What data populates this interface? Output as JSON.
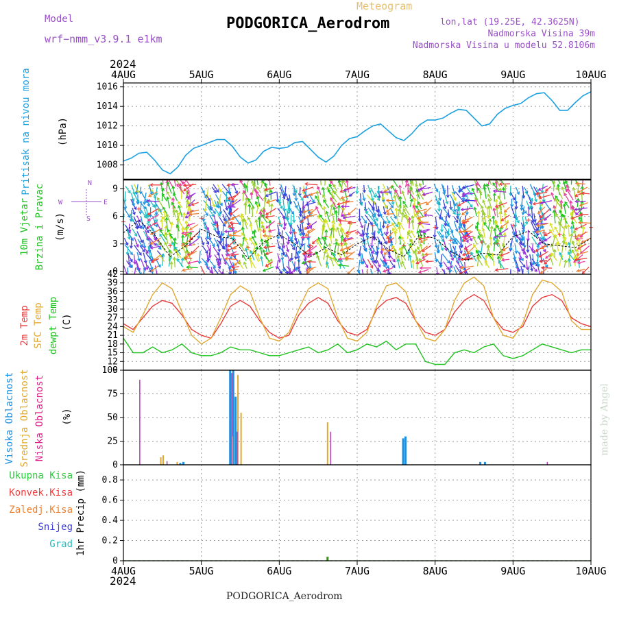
{
  "header": {
    "model_label": "Model",
    "model_name": "wrf−nmm_v3.9.1  e1km",
    "meteogram_label": "Meteogram",
    "station_title": "PODGORICA_Aerodrom",
    "lonlat": "lon,lat (19.25E, 42.3625N)",
    "altitude": "Nadmorska Visina 39m",
    "model_altitude": "Nadmorska Visina u modelu 52.8106m",
    "bottom_title": "PODGORICA_Aerodrom",
    "watermark": "made by Angel"
  },
  "colors": {
    "pressure": "#1aa0e0",
    "temp2m": "#e83a3a",
    "sfc": "#e0a830",
    "dew": "#1ec21e",
    "high_cloud": "#1e90e0",
    "mid_cloud": "#e0a830",
    "low_cloud": "#b040b0",
    "model_purple": "#9a50c8",
    "precip_total": "#2ecc40",
    "precip_conv": "#f03c3c",
    "precip_snow_freeze": "#f08030",
    "precip_snow": "#3c3cd8",
    "precip_hail": "#20c0c0"
  },
  "time_axis": {
    "year": "2024",
    "day_labels": [
      "4AUG",
      "5AUG",
      "6AUG",
      "7AUG",
      "8AUG",
      "9AUG",
      "10AUG"
    ]
  },
  "wind_compass": {
    "north": "N",
    "west": "W",
    "east": "E",
    "south": "S"
  },
  "chart_data": [
    {
      "type": "line",
      "id": "pressure",
      "ylabel": "Pritisak na nivou mora",
      "unit_label": "(hPa)",
      "yticks": [
        1008,
        1010,
        1012,
        1014,
        1016
      ],
      "ylim": [
        1006.5,
        1016.4
      ],
      "grid": true,
      "series": [
        {
          "x": [
            0,
            0.1,
            0.2,
            0.3,
            0.4,
            0.5,
            0.6,
            0.7,
            0.8,
            0.9,
            1,
            1.1,
            1.2,
            1.3,
            1.4,
            1.5,
            1.6,
            1.7,
            1.8,
            1.9,
            2,
            2.1,
            2.2,
            2.3,
            2.4,
            2.5,
            2.6,
            2.7,
            2.8,
            2.9,
            3,
            3.1,
            3.2,
            3.3,
            3.4,
            3.5,
            3.6,
            3.7,
            3.8,
            3.9,
            4,
            4.1,
            4.2,
            4.3,
            4.4,
            4.5,
            4.6,
            4.7,
            4.8,
            4.9,
            5,
            5.1,
            5.2,
            5.3,
            5.4,
            5.5,
            5.6,
            5.7,
            5.8,
            5.9,
            6
          ],
          "values": [
            1008.4,
            1008.7,
            1009.2,
            1009.3,
            1008.5,
            1007.5,
            1007.1,
            1007.8,
            1009.0,
            1009.7,
            1010.0,
            1010.3,
            1010.6,
            1010.6,
            1009.9,
            1008.8,
            1008.2,
            1008.5,
            1009.4,
            1009.8,
            1009.7,
            1009.8,
            1010.3,
            1010.4,
            1009.6,
            1008.8,
            1008.3,
            1008.9,
            1010.0,
            1010.7,
            1010.9,
            1011.5,
            1012.0,
            1012.2,
            1011.5,
            1010.8,
            1010.5,
            1011.2,
            1012.1,
            1012.6,
            1012.6,
            1012.8,
            1013.3,
            1013.7,
            1013.6,
            1012.8,
            1012.0,
            1012.2,
            1013.2,
            1013.8,
            1014.1,
            1014.3,
            1014.9,
            1015.3,
            1015.4,
            1014.6,
            1013.6,
            1013.6,
            1014.4,
            1015.1,
            1015.5
          ]
        }
      ]
    },
    {
      "type": "scatter",
      "id": "wind",
      "ylabel": "10m Vjetar Brzina i Pravac",
      "ylabel_lines": [
        "10m Vjetar",
        "Brzina i Pravac"
      ],
      "unit_label": "(m/s)",
      "yticks": [
        0,
        3,
        6,
        9
      ],
      "ylim": [
        -0.3,
        10
      ],
      "grid": true,
      "speed_x": [
        0,
        0.2,
        0.4,
        0.6,
        0.8,
        1,
        1.2,
        1.4,
        1.6,
        1.8,
        2,
        2.2,
        2.4,
        2.6,
        2.8,
        3,
        3.2,
        3.4,
        3.6,
        3.8,
        4,
        4.2,
        4.4,
        4.6,
        4.8,
        5,
        5.2,
        5.4,
        5.6,
        5.8,
        6
      ],
      "speed_values": [
        4.2,
        5.6,
        4.0,
        1.6,
        2.8,
        4.6,
        3.8,
        3.6,
        1.4,
        3.2,
        4.0,
        3.0,
        1.6,
        2.6,
        1.8,
        3.0,
        3.8,
        2.4,
        1.6,
        4.0,
        3.6,
        2.2,
        1.2,
        2.0,
        1.8,
        3.8,
        4.4,
        3.0,
        2.8,
        2.6,
        3.6
      ]
    },
    {
      "type": "line",
      "id": "temperature",
      "ylabel_lines": [
        "2m Temp",
        "SFC Temp",
        "dewpt Temp"
      ],
      "unit_label": "(C)",
      "yticks": [
        9,
        12,
        15,
        18,
        21,
        24,
        27,
        30,
        33,
        36,
        39,
        42
      ],
      "ylim": [
        9,
        42
      ],
      "grid": true,
      "x": [
        0,
        0.125,
        0.25,
        0.375,
        0.5,
        0.625,
        0.75,
        0.875,
        1,
        1.125,
        1.25,
        1.375,
        1.5,
        1.625,
        1.75,
        1.875,
        2,
        2.125,
        2.25,
        2.375,
        2.5,
        2.625,
        2.75,
        2.875,
        3,
        3.125,
        3.25,
        3.375,
        3.5,
        3.625,
        3.75,
        3.875,
        4,
        4.125,
        4.25,
        4.375,
        4.5,
        4.625,
        4.75,
        4.875,
        5,
        5.125,
        5.25,
        5.375,
        5.5,
        5.625,
        5.75,
        5.875,
        6
      ],
      "series": [
        {
          "name": "2m Temp",
          "values": [
            25,
            23,
            27,
            31,
            33,
            32,
            28,
            23,
            21,
            20,
            25,
            31,
            33,
            31,
            26,
            22,
            20,
            21,
            28,
            32,
            34,
            32,
            26,
            22,
            21,
            23,
            30,
            33,
            34,
            32,
            26,
            22,
            21,
            23,
            29,
            33,
            35,
            33,
            27,
            23,
            22,
            24,
            31,
            34,
            35,
            33,
            27,
            25,
            24
          ]
        },
        {
          "name": "SFC Temp",
          "values": [
            24,
            22,
            28,
            35,
            39,
            37,
            29,
            21,
            18,
            20,
            27,
            35,
            38,
            36,
            27,
            20,
            19,
            22,
            30,
            37,
            39,
            37,
            27,
            20,
            19,
            22,
            31,
            38,
            39,
            36,
            26,
            20,
            19,
            23,
            33,
            39,
            41,
            38,
            27,
            21,
            20,
            25,
            35,
            40,
            39,
            36,
            26,
            23,
            23
          ]
        },
        {
          "name": "dewpt Temp",
          "values": [
            20,
            15,
            15,
            17,
            15,
            16,
            18,
            15,
            14,
            14,
            15,
            17,
            16,
            16,
            15,
            14,
            14,
            15,
            16,
            17,
            15,
            16,
            18,
            15,
            16,
            18,
            17,
            19,
            16,
            18,
            18,
            12,
            11,
            11,
            15,
            16,
            15,
            17,
            18,
            14,
            13,
            14,
            16,
            18,
            17,
            16,
            15,
            16,
            16
          ]
        }
      ]
    },
    {
      "type": "bar",
      "id": "clouds",
      "ylabel_lines": [
        "Visoka Oblacnost",
        "Srednja Oblacnost",
        "Niska Oblacnost"
      ],
      "unit_label": "(%)",
      "yticks": [
        0,
        25,
        50,
        75,
        100
      ],
      "ylim": [
        0,
        100
      ],
      "grid": true,
      "series": [
        {
          "name": "Visoka Oblacnost",
          "x": [
            0.73,
            0.77,
            1.37,
            1.41,
            1.44,
            3.59,
            3.62,
            4.58,
            4.64
          ],
          "values": [
            2,
            3,
            100,
            100,
            72,
            28,
            30,
            3,
            3
          ]
        },
        {
          "name": "Srednja Oblacnost",
          "x": [
            0.48,
            0.51,
            0.69,
            1.4,
            1.47,
            1.51,
            2.62
          ],
          "values": [
            8,
            10,
            3,
            30,
            95,
            55,
            45
          ]
        },
        {
          "name": "Niska Oblacnost",
          "x": [
            0.21,
            0.56,
            1.39,
            1.46,
            2.66,
            5.44
          ],
          "values": [
            90,
            4,
            97,
            35,
            35,
            3
          ]
        }
      ]
    },
    {
      "type": "bar",
      "id": "precip",
      "ylabel": "1hr Precip (mm)",
      "legend_lines": [
        "Ukupna Kisa",
        "Konvek.Kisa",
        "Zaledj.Kisa",
        "Snijeg",
        "Grad"
      ],
      "yticks": [
        0,
        0.2,
        0.4,
        0.6,
        0.8
      ],
      "ylim": [
        0,
        0.95
      ],
      "grid": true,
      "series": [
        {
          "name": "Ukupna Kisa",
          "x": [
            2.62
          ],
          "values": [
            0.04
          ]
        }
      ]
    }
  ]
}
